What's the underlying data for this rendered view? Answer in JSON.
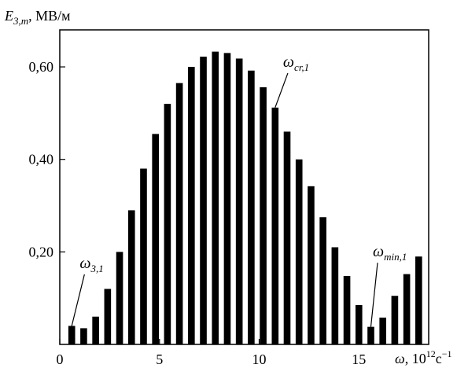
{
  "chart_data": {
    "type": "bar",
    "ylabel": {
      "symbol": "E",
      "subscript": "3,m",
      "unit": ", МВ/м"
    },
    "xlabel": {
      "symbol": "ω",
      "unit_base": ", 10",
      "unit_power": "12",
      "unit_tail": "c",
      "unit_tail_power": "−1"
    },
    "xlim": [
      0,
      18.5
    ],
    "ylim": [
      0,
      0.68
    ],
    "x_ticks": [
      {
        "value": 0,
        "label": "0"
      },
      {
        "value": 5,
        "label": "5"
      },
      {
        "value": 10,
        "label": "10"
      },
      {
        "value": 15,
        "label": "15"
      }
    ],
    "y_ticks": [
      {
        "value": 0.2,
        "label": "0,20"
      },
      {
        "value": 0.4,
        "label": "0,40"
      },
      {
        "value": 0.6,
        "label": "0,60"
      }
    ],
    "bar_width": 0.34,
    "bars": [
      {
        "x": 0.6,
        "y": 0.04
      },
      {
        "x": 1.2,
        "y": 0.035
      },
      {
        "x": 1.8,
        "y": 0.06
      },
      {
        "x": 2.4,
        "y": 0.12
      },
      {
        "x": 3.0,
        "y": 0.2
      },
      {
        "x": 3.6,
        "y": 0.29
      },
      {
        "x": 4.2,
        "y": 0.38
      },
      {
        "x": 4.8,
        "y": 0.455
      },
      {
        "x": 5.4,
        "y": 0.52
      },
      {
        "x": 6.0,
        "y": 0.565
      },
      {
        "x": 6.6,
        "y": 0.6
      },
      {
        "x": 7.2,
        "y": 0.622
      },
      {
        "x": 7.8,
        "y": 0.633
      },
      {
        "x": 8.4,
        "y": 0.63
      },
      {
        "x": 9.0,
        "y": 0.618
      },
      {
        "x": 9.6,
        "y": 0.592
      },
      {
        "x": 10.2,
        "y": 0.556
      },
      {
        "x": 10.8,
        "y": 0.512
      },
      {
        "x": 11.4,
        "y": 0.46
      },
      {
        "x": 12.0,
        "y": 0.4
      },
      {
        "x": 12.6,
        "y": 0.342
      },
      {
        "x": 13.2,
        "y": 0.275
      },
      {
        "x": 13.8,
        "y": 0.21
      },
      {
        "x": 14.4,
        "y": 0.148
      },
      {
        "x": 15.0,
        "y": 0.085
      },
      {
        "x": 15.6,
        "y": 0.038
      },
      {
        "x": 16.2,
        "y": 0.058
      },
      {
        "x": 16.8,
        "y": 0.105
      },
      {
        "x": 17.4,
        "y": 0.152
      },
      {
        "x": 18.0,
        "y": 0.19
      }
    ],
    "annotations": [
      {
        "symbol": "ω",
        "sub": "3,1",
        "point": [
          0.6,
          0.04
        ],
        "text_at": [
          1.0,
          0.165
        ]
      },
      {
        "symbol": "ω",
        "sub": "cr,1",
        "point": [
          10.8,
          0.512
        ],
        "text_at": [
          11.2,
          0.6
        ]
      },
      {
        "symbol": "ω",
        "sub": "min,1",
        "point": [
          15.6,
          0.038
        ],
        "text_at": [
          15.7,
          0.19
        ]
      }
    ],
    "colors": {
      "bars": "#000000",
      "axes": "#000000",
      "background": "#ffffff"
    }
  }
}
